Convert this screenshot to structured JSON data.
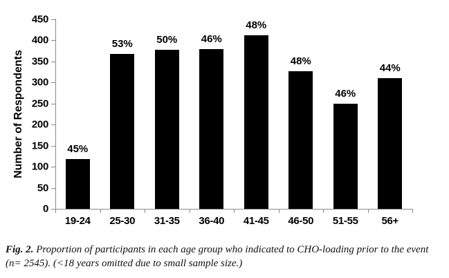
{
  "chart_data": {
    "type": "bar",
    "title": "",
    "xlabel": "",
    "ylabel": "Number of Respondents",
    "categories": [
      "19-24",
      "25-30",
      "31-35",
      "36-40",
      "41-45",
      "46-50",
      "51-55",
      "56+"
    ],
    "values": [
      119,
      368,
      378,
      380,
      413,
      327,
      250,
      310
    ],
    "bar_labels": [
      "45%",
      "53%",
      "50%",
      "46%",
      "48%",
      "48%",
      "46%",
      "44%"
    ],
    "ylim": [
      0,
      450
    ],
    "yticks": [
      0,
      50,
      100,
      150,
      200,
      250,
      300,
      350,
      400,
      450
    ],
    "bar_color": "#000000",
    "axis_color": "#898989",
    "grid": false,
    "legend_position": "none"
  },
  "caption": {
    "label": "Fig. 2.",
    "text": " Proportion of participants in each age group who indicated to CHO-loading prior to the event (n= 2545). (<18 years omitted due to small sample size.)"
  }
}
